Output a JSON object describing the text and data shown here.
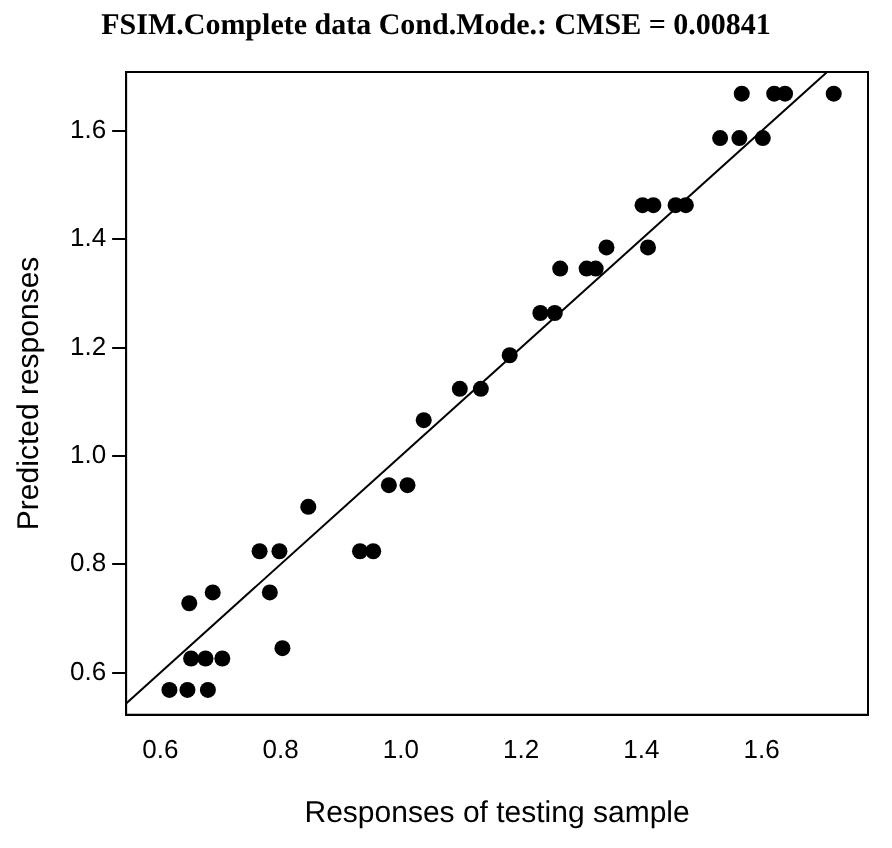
{
  "chart_data": {
    "type": "scatter",
    "title": "FSIM.Complete data Cond.Mode.: CMSE = 0.00841",
    "xlabel": "Responses of testing sample",
    "ylabel": "Predicted responses",
    "xlim": [
      0.543,
      1.777
    ],
    "ylim": [
      0.522,
      1.709
    ],
    "xticks": [
      0.6,
      0.8,
      {
        "value": 1,
        "label": "1.0"
      },
      1.2,
      1.4,
      1.6
    ],
    "yticks": [
      0.6,
      0.8,
      {
        "value": 1,
        "label": "1.0"
      },
      1.2,
      1.4,
      1.6
    ],
    "grid": false,
    "legend": false,
    "marker": "circle",
    "series": [
      {
        "color": "#000000",
        "x": [
          0.615,
          0.645,
          0.679,
          0.651,
          0.675,
          0.703,
          0.648,
          0.687,
          0.803,
          0.782,
          0.765,
          0.798,
          0.846,
          0.932,
          0.954,
          0.98,
          1.011,
          1.038,
          1.098,
          1.133,
          1.181,
          1.232,
          1.256,
          1.265,
          1.309,
          1.324,
          1.342,
          1.411,
          1.402,
          1.42,
          1.457,
          1.474,
          1.531,
          1.563,
          1.602,
          1.567,
          1.621,
          1.639,
          1.72
        ],
        "values": [
          0.568,
          0.568,
          0.568,
          0.626,
          0.626,
          0.626,
          0.728,
          0.748,
          0.645,
          0.748,
          0.824,
          0.824,
          0.906,
          0.824,
          0.824,
          0.946,
          0.946,
          1.066,
          1.124,
          1.124,
          1.186,
          1.264,
          1.264,
          1.346,
          1.346,
          1.346,
          1.385,
          1.385,
          1.463,
          1.463,
          1.463,
          1.463,
          1.587,
          1.587,
          1.587,
          1.669,
          1.669,
          1.669,
          1.669
        ]
      },
      {
        "type": "line",
        "color": "#000000",
        "marker": "none",
        "line_style": "solid",
        "x": [
          0.543,
          1.709
        ],
        "values": [
          0.543,
          1.709
        ]
      }
    ]
  }
}
